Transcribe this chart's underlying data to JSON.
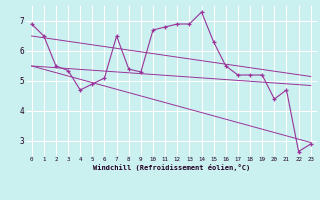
{
  "xlabel": "Windchill (Refroidissement éolien,°C)",
  "background_color": "#caf0f0",
  "line_color": "#993399",
  "grid_color": "#aadddd",
  "xlim": [
    -0.5,
    23.5
  ],
  "ylim": [
    2.5,
    7.5
  ],
  "yticks": [
    3,
    4,
    5,
    6,
    7
  ],
  "xticks": [
    0,
    1,
    2,
    3,
    4,
    5,
    6,
    7,
    8,
    9,
    10,
    11,
    12,
    13,
    14,
    15,
    16,
    17,
    18,
    19,
    20,
    21,
    22,
    23
  ],
  "series1_x": [
    0,
    1,
    2,
    3,
    4,
    5,
    6,
    7,
    8,
    9,
    10,
    11,
    12,
    13,
    14,
    15,
    16,
    17,
    18,
    19,
    20,
    21,
    22,
    23
  ],
  "series1_y": [
    6.9,
    6.5,
    5.5,
    5.35,
    4.7,
    4.9,
    5.1,
    6.5,
    5.4,
    5.3,
    6.7,
    6.8,
    6.9,
    6.9,
    7.3,
    6.3,
    5.5,
    5.2,
    5.2,
    5.2,
    4.4,
    4.7,
    2.65,
    2.9
  ],
  "trend1_x": [
    0,
    23
  ],
  "trend1_y": [
    6.5,
    5.15
  ],
  "trend2_x": [
    0,
    23
  ],
  "trend2_y": [
    5.5,
    4.85
  ],
  "trend3_x": [
    0,
    23
  ],
  "trend3_y": [
    5.5,
    2.95
  ]
}
